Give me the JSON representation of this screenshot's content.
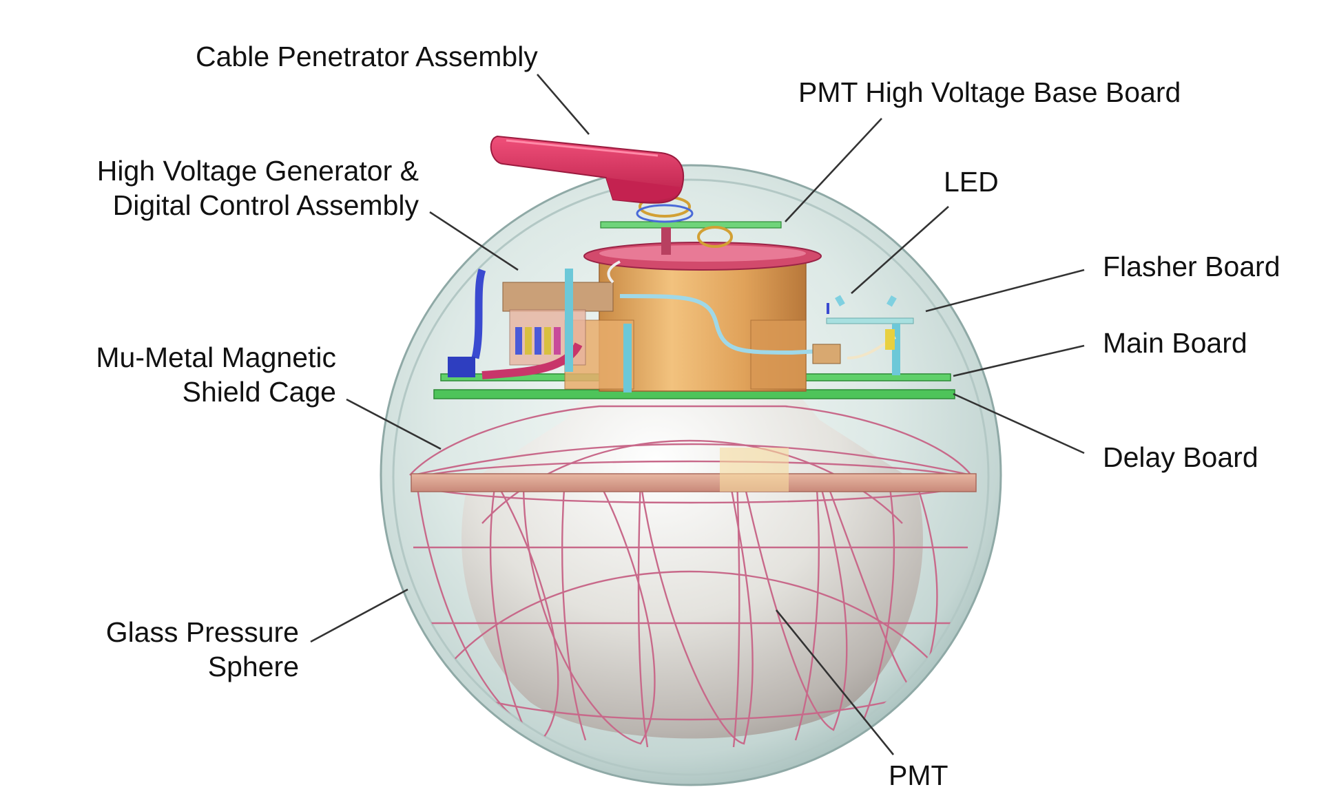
{
  "labels": {
    "cable_penetrator": "Cable Penetrator Assembly",
    "pmt_hv_base": "PMT High Voltage Base Board",
    "hv_generator_line1": "High Voltage Generator &",
    "hv_generator_line2": "Digital Control Assembly",
    "led": "LED",
    "flasher_board": "Flasher Board",
    "main_board": "Main Board",
    "mu_metal_line1": "Mu-Metal Magnetic",
    "mu_metal_line2": "Shield Cage",
    "delay_board": "Delay Board",
    "glass_sphere_line1": "Glass Pressure",
    "glass_sphere_line2": "Sphere",
    "pmt": "PMT"
  }
}
